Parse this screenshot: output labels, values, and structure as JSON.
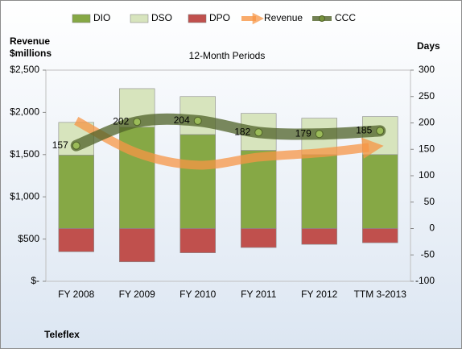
{
  "chart_data": {
    "type": "bar",
    "title": "12-Month Periods",
    "ylabel": [
      "Revenue",
      "$millions"
    ],
    "y2label": "Days",
    "footer": "Teleflex",
    "categories": [
      "FY 2008",
      "FY 2009",
      "FY 2010",
      "FY 2011",
      "FY 2012",
      "TTM 3-2013"
    ],
    "ylim": [
      0,
      2500
    ],
    "yticks": [
      {
        "value": 0,
        "label": "$-"
      },
      {
        "value": 500,
        "label": "$500"
      },
      {
        "value": 1000,
        "label": "$1,000"
      },
      {
        "value": 1500,
        "label": "$1,500"
      },
      {
        "value": 2000,
        "label": "$2,000"
      },
      {
        "value": 2500,
        "label": "$2,500"
      }
    ],
    "y2lim": [
      -100,
      300
    ],
    "y2ticks": [
      -100,
      -50,
      0,
      50,
      100,
      150,
      200,
      250,
      300
    ],
    "legend": "top",
    "series": [
      {
        "name": "DIO",
        "type": "bar",
        "axis": "y2",
        "color": "#86a845",
        "values": [
          139,
          192,
          178,
          148,
          140,
          140
        ]
      },
      {
        "name": "DSO",
        "type": "bar",
        "axis": "y2",
        "color": "#d7e4bd",
        "values": [
          62,
          73,
          72,
          70,
          69,
          72
        ]
      },
      {
        "name": "DPO",
        "type": "bar",
        "axis": "y2",
        "color": "#c0504d",
        "values": [
          -44,
          -63,
          -46,
          -36,
          -30,
          -27
        ]
      },
      {
        "name": "Revenue",
        "type": "line",
        "axis": "y",
        "color": "#f79646",
        "values": [
          1900,
          1520,
          1375,
          1470,
          1520,
          1585
        ]
      },
      {
        "name": "CCC",
        "type": "line",
        "axis": "y2",
        "color": "#4f6228",
        "values": [
          157,
          202,
          204,
          182,
          179,
          185
        ],
        "value_labels": [
          "157",
          "202",
          "204",
          "182",
          "179",
          "185"
        ]
      }
    ]
  }
}
